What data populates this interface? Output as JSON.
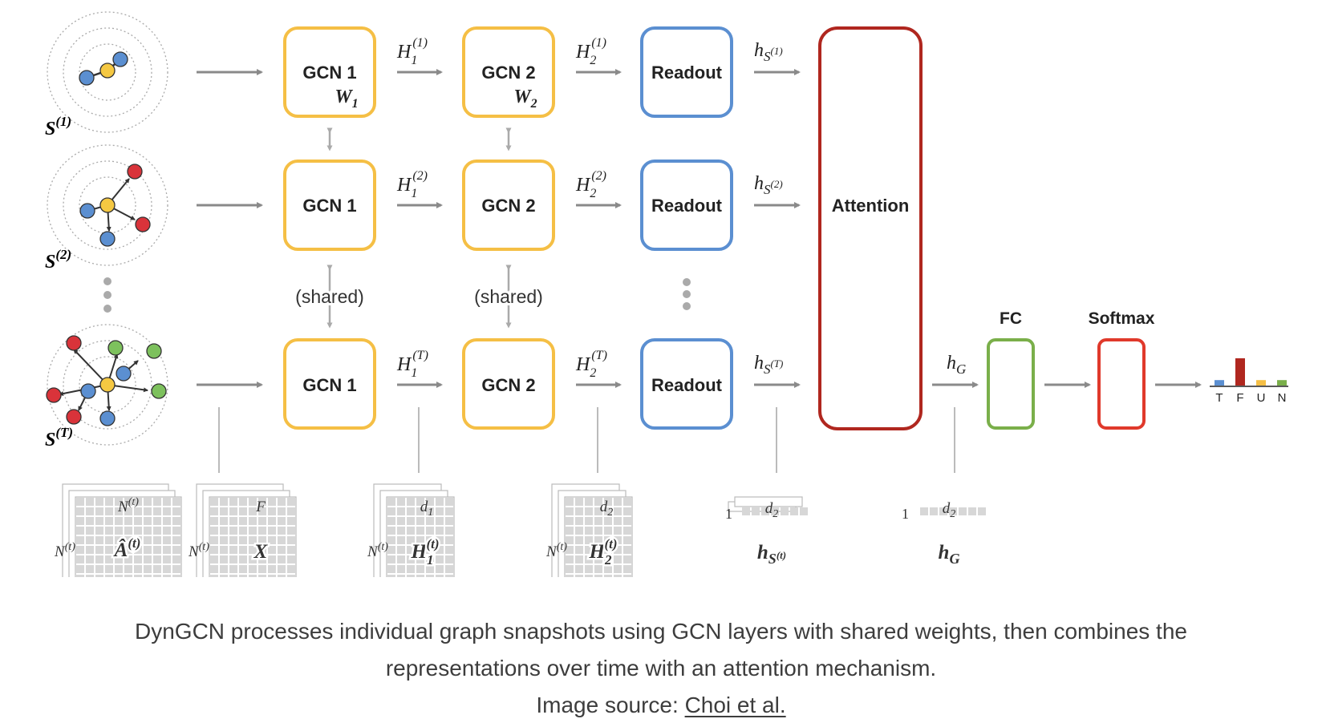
{
  "diagram": {
    "colors": {
      "gcn": "#f5bf45",
      "readout": "#5b8fd1",
      "attention": "#b0271f",
      "fc": "#7aaf4a",
      "softmax": "#e0392b",
      "node_blue": "#5b8fd1",
      "node_yellow": "#f5c842",
      "node_red": "#d9333a",
      "node_green": "#7dc15d",
      "arrow": "#8a8a8a",
      "matrix": "#d7d7d7"
    },
    "snapshots": [
      {
        "label_base": "S",
        "label_sup": "(1)"
      },
      {
        "label_base": "S",
        "label_sup": "(2)"
      },
      {
        "label_base": "S",
        "label_sup": "(T)"
      }
    ],
    "gcn1": {
      "label": "GCN 1",
      "weight_base": "W",
      "weight_sub": "1"
    },
    "gcn2": {
      "label": "GCN 2",
      "weight_base": "W",
      "weight_sub": "2"
    },
    "readout_label": "Readout",
    "attention_label": "Attention",
    "fc_label": "FC",
    "softmax_label": "Softmax",
    "shared_label": "(shared)",
    "h1": [
      {
        "base": "H",
        "sub": "1",
        "sup": "(1)"
      },
      {
        "base": "H",
        "sub": "1",
        "sup": "(2)"
      },
      {
        "base": "H",
        "sub": "1",
        "sup": "(T)"
      }
    ],
    "h2": [
      {
        "base": "H",
        "sub": "2",
        "sup": "(1)"
      },
      {
        "base": "H",
        "sub": "2",
        "sup": "(2)"
      },
      {
        "base": "H",
        "sub": "2",
        "sup": "(T)"
      }
    ],
    "hs": [
      {
        "base": "h",
        "sub": "S",
        "subsup": "(1)"
      },
      {
        "base": "h",
        "sub": "S",
        "subsup": "(2)"
      },
      {
        "base": "h",
        "sub": "S",
        "subsup": "(T)"
      }
    ],
    "hg": {
      "base": "h",
      "sub": "G"
    },
    "output_bars": {
      "labels": [
        "T",
        "F",
        "U",
        "N"
      ],
      "values": [
        0.2,
        1.0,
        0.2,
        0.2
      ],
      "colors": [
        "#5b8fd1",
        "#b0271f",
        "#f5bf45",
        "#7aaf4a"
      ]
    },
    "matrices": {
      "a": {
        "top": "N^{(t)}",
        "top_base": "N",
        "top_sup": "(t)",
        "left_base": "N",
        "left_sup": "(t)",
        "name_base": "Â",
        "name_sup": "(t)"
      },
      "x": {
        "top": "F",
        "left_base": "N",
        "left_sup": "(t)",
        "name": "X"
      },
      "h1": {
        "top_base": "d",
        "top_sub": "1",
        "left_base": "N",
        "left_sup": "(t)",
        "name_base": "H",
        "name_sub": "1",
        "name_sup": "(t)"
      },
      "h2": {
        "top_base": "d",
        "top_sub": "2",
        "left_base": "N",
        "left_sup": "(t)",
        "name_base": "H",
        "name_sub": "2",
        "name_sup": "(t)"
      },
      "hs": {
        "one": "1",
        "top_base": "d",
        "top_sub": "2",
        "name_base": "h",
        "name_sub": "S",
        "name_subsup": "(t)"
      },
      "hg": {
        "one": "1",
        "top_base": "d",
        "top_sub": "2",
        "name_base": "h",
        "name_sub": "G"
      }
    }
  },
  "caption": {
    "line1": "DynGCN processes individual graph snapshots using GCN layers with shared weights, then combines the",
    "line2": "representations over time with an attention mechanism.",
    "source_prefix": "Image source: ",
    "source_link": "Choi et al."
  }
}
